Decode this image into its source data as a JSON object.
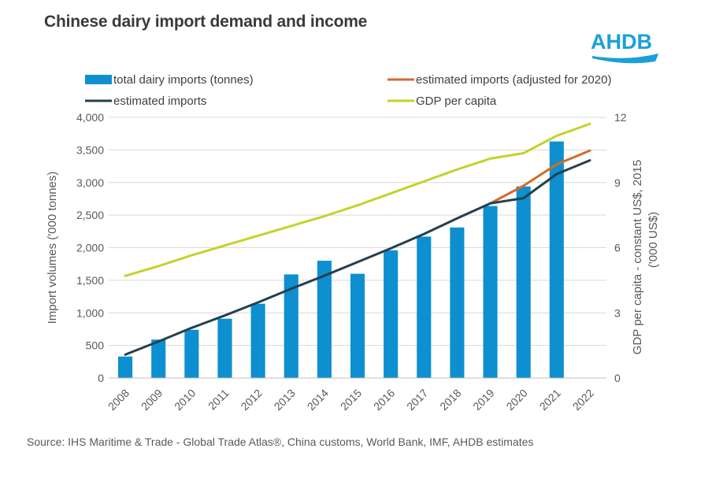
{
  "title": "Chinese dairy import demand and income",
  "logo": {
    "text": "AHDB",
    "color": "#1aa0d8"
  },
  "source": "Source: IHS Maritime & Trade - Global Trade Atlas®, China customs, World Bank, IMF, AHDB estimates",
  "chart_data": {
    "type": "bar+line",
    "categories": [
      "2008",
      "2009",
      "2010",
      "2011",
      "2012",
      "2013",
      "2014",
      "2015",
      "2016",
      "2017",
      "2018",
      "2019",
      "2020",
      "2021",
      "2022"
    ],
    "y_left": {
      "label": "Import volumes ('000 tonnes)",
      "min": 0,
      "max": 4000,
      "ticks": [
        0,
        500,
        1000,
        1500,
        2000,
        2500,
        3000,
        3500,
        4000
      ],
      "tick_labels": [
        "0",
        "500",
        "1,000",
        "1,500",
        "2,000",
        "2,500",
        "3,000",
        "3,500",
        "4,000"
      ]
    },
    "y_right": {
      "label_line1": "GDP per capita - constant US$, 2015",
      "label_line2": "('000 US$)",
      "min": 0,
      "max": 12,
      "ticks": [
        0,
        3,
        6,
        9,
        12
      ],
      "tick_labels": [
        "0",
        "3",
        "6",
        "9",
        "12"
      ]
    },
    "series": [
      {
        "name": "total dairy imports (tonnes)",
        "kind": "bar",
        "axis": "left",
        "color": "#0e8fd0",
        "values": [
          330,
          590,
          740,
          910,
          1140,
          1590,
          1800,
          1600,
          1960,
          2170,
          2310,
          2640,
          2940,
          3630,
          null
        ]
      },
      {
        "name": "estimated imports (adjusted for 2020)",
        "kind": "line",
        "axis": "left",
        "color": "#d46a2a",
        "values": [
          null,
          null,
          null,
          null,
          null,
          null,
          null,
          null,
          null,
          null,
          null,
          2680,
          2950,
          3280,
          3490
        ]
      },
      {
        "name": "estimated imports",
        "kind": "line",
        "axis": "left",
        "color": "#24404f",
        "values": [
          360,
          560,
          770,
          960,
          1160,
          1370,
          1570,
          1780,
          1990,
          2210,
          2450,
          2680,
          2760,
          3130,
          3340
        ]
      },
      {
        "name": "GDP per capita",
        "kind": "line",
        "axis": "right",
        "color": "#c4d22a",
        "values": [
          4.7,
          5.15,
          5.65,
          6.1,
          6.55,
          7.0,
          7.45,
          7.95,
          8.5,
          9.05,
          9.6,
          10.1,
          10.35,
          11.15,
          11.7
        ]
      }
    ],
    "legend": [
      {
        "label": "total dairy imports (tonnes)",
        "kind": "bar",
        "color": "#0e8fd0"
      },
      {
        "label": "estimated imports (adjusted for 2020)",
        "kind": "line",
        "color": "#d46a2a"
      },
      {
        "label": "estimated imports",
        "kind": "line",
        "color": "#24404f"
      },
      {
        "label": "GDP per capita",
        "kind": "line",
        "color": "#c4d22a"
      }
    ],
    "grid": true,
    "gridline_color": "#d9d9d9"
  }
}
